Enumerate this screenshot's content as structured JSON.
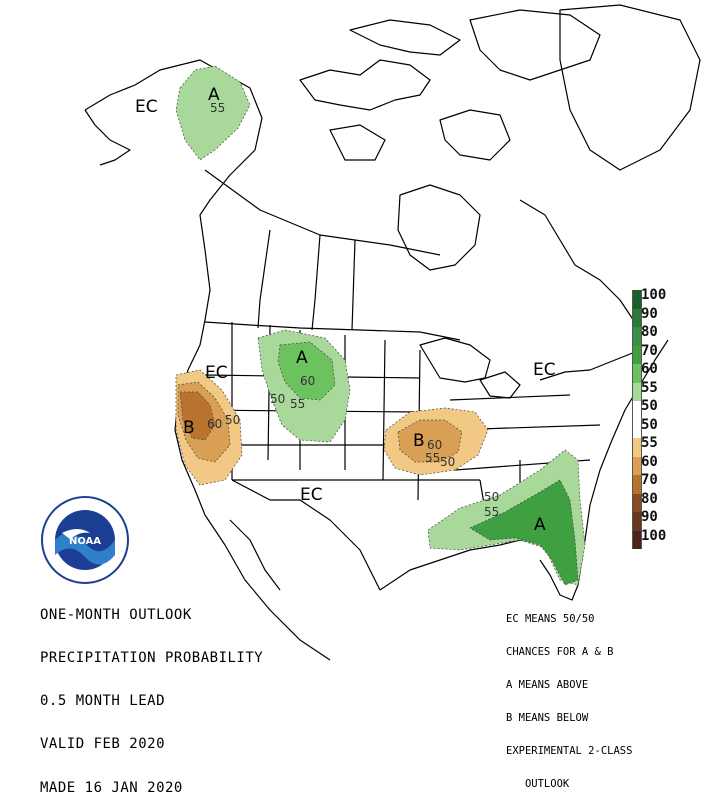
{
  "map": {
    "region_labels": [
      {
        "name": "ec-alaska",
        "text": "EC"
      },
      {
        "name": "ec-west",
        "text": "EC"
      },
      {
        "name": "ec-east",
        "text": "EC"
      },
      {
        "name": "ec-south",
        "text": "EC"
      },
      {
        "name": "a-alaska",
        "text": "A"
      },
      {
        "name": "a-north-plains",
        "text": "A"
      },
      {
        "name": "a-southeast",
        "text": "A"
      },
      {
        "name": "b-california",
        "text": "B"
      },
      {
        "name": "b-ohio-valley",
        "text": "B"
      }
    ],
    "contour_labels": [
      {
        "name": "alaska-55",
        "text": "55"
      },
      {
        "name": "plains-60",
        "text": "60"
      },
      {
        "name": "plains-50",
        "text": "50"
      },
      {
        "name": "plains-55",
        "text": "55"
      },
      {
        "name": "ca-60",
        "text": "60"
      },
      {
        "name": "ca-50",
        "text": "50"
      },
      {
        "name": "ohio-60",
        "text": "60"
      },
      {
        "name": "ohio-55",
        "text": "55"
      },
      {
        "name": "ohio-50",
        "text": "50"
      },
      {
        "name": "se-50",
        "text": "50"
      },
      {
        "name": "se-55",
        "text": "55"
      }
    ],
    "colors": {
      "above_55": "#a8d99a",
      "above_60": "#6cc25f",
      "above_70": "#3ea040",
      "below_55": "#f2c885",
      "below_60": "#d9a055",
      "below_70": "#b8742f",
      "land_outline": "#000000"
    }
  },
  "legend": {
    "items": [
      {
        "label": "100",
        "color": "#1b5e2a"
      },
      {
        "label": "90",
        "color": "#2a7a38"
      },
      {
        "label": "80",
        "color": "#3a8f45"
      },
      {
        "label": "70",
        "color": "#3ea040"
      },
      {
        "label": "60",
        "color": "#6cc25f"
      },
      {
        "label": "55",
        "color": "#a8d99a"
      },
      {
        "label": "50",
        "color": "#ffffff"
      },
      {
        "label": "50",
        "color": "#ffffff"
      },
      {
        "label": "55",
        "color": "#f2c885"
      },
      {
        "label": "60",
        "color": "#d9a055"
      },
      {
        "label": "70",
        "color": "#b8742f"
      },
      {
        "label": "80",
        "color": "#8a4a25"
      },
      {
        "label": "90",
        "color": "#6a3520"
      },
      {
        "label": "100",
        "color": "#4a2418"
      }
    ]
  },
  "title_lines": [
    "ONE-MONTH OUTLOOK",
    "PRECIPITATION PROBABILITY",
    "0.5 MONTH LEAD",
    "VALID FEB 2020",
    "MADE 16 JAN 2020"
  ],
  "notes_lines": [
    "EC MEANS 50/50",
    "CHANCES FOR A & B",
    "A MEANS ABOVE",
    "B MEANS BELOW",
    "EXPERIMENTAL 2-CLASS",
    "   OUTLOOK"
  ],
  "logo": {
    "text": "NOAA",
    "icon": "noaa-logo-icon"
  }
}
